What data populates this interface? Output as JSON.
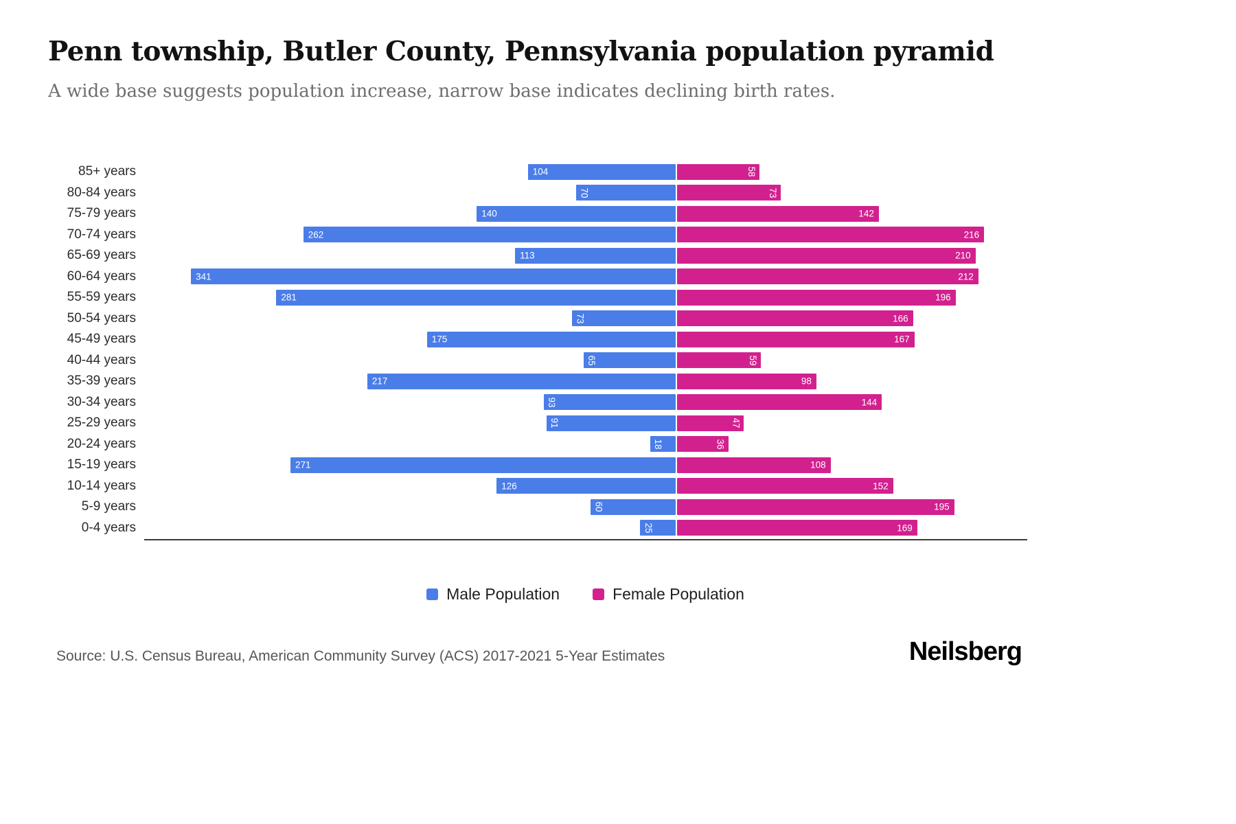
{
  "header": {
    "title": "Penn township, Butler County, Pennsylvania population pyramid",
    "subtitle": "A wide base suggests population increase, narrow base indicates declining birth rates."
  },
  "legend": {
    "male_label": "Male Population",
    "female_label": "Female Population"
  },
  "footer": {
    "source": "Source: U.S. Census Bureau, American Community Survey (ACS) 2017-2021 5-Year Estimates",
    "brand": "Neilsberg"
  },
  "colors": {
    "male": "#4a7de8",
    "female": "#d2218e"
  },
  "chart_data": {
    "type": "bar",
    "subtype": "population-pyramid",
    "orientation": "horizontal",
    "legend_position": "bottom",
    "grid": false,
    "value_labels": "inside-bar-end",
    "categories": [
      "85+ years",
      "80-84 years",
      "75-79 years",
      "70-74 years",
      "65-69 years",
      "60-64 years",
      "55-59 years",
      "50-54 years",
      "45-49 years",
      "40-44 years",
      "35-39 years",
      "30-34 years",
      "25-29 years",
      "20-24 years",
      "15-19 years",
      "10-14 years",
      "5-9 years",
      "0-4 years"
    ],
    "series": [
      {
        "name": "Male Population",
        "side": "left",
        "color": "#4a7de8",
        "values": [
          104,
          70,
          140,
          262,
          113,
          341,
          281,
          73,
          175,
          65,
          217,
          93,
          91,
          18,
          271,
          126,
          60,
          25
        ]
      },
      {
        "name": "Female Population",
        "side": "right",
        "color": "#d2218e",
        "values": [
          58,
          73,
          142,
          216,
          210,
          212,
          196,
          166,
          167,
          59,
          98,
          144,
          47,
          36,
          108,
          152,
          195,
          169
        ]
      }
    ],
    "xlim_left": [
      0,
      375
    ],
    "xlim_right": [
      0,
      250
    ]
  }
}
